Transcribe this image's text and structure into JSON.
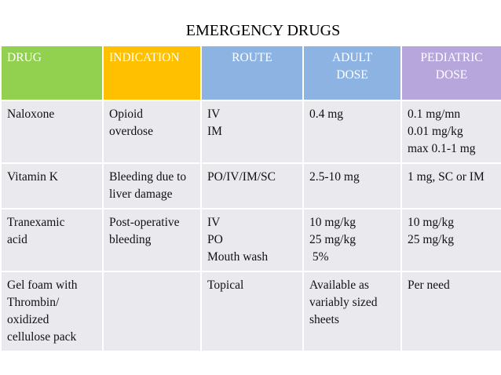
{
  "title": "EMERGENCY DRUGS",
  "table": {
    "header": [
      [
        "DRUG"
      ],
      [
        "INDICATION"
      ],
      [
        "ROUTE"
      ],
      [
        "ADULT",
        "DOSE"
      ],
      [
        "PEDIATRIC",
        "DOSE"
      ]
    ],
    "rows": [
      [
        [
          "Naloxone"
        ],
        [
          "Opioid",
          "overdose"
        ],
        [
          "IV",
          "IM"
        ],
        [
          "0.4 mg"
        ],
        [
          "0.1 mg/mn",
          "0.01 mg/kg",
          "max 0.1-1 mg"
        ]
      ],
      [
        [
          "Vitamin K"
        ],
        [
          "Bleeding due to",
          "liver damage"
        ],
        [
          "PO/IV/IM/SC"
        ],
        [
          "2.5-10 mg"
        ],
        [
          "1 mg, SC or IM"
        ]
      ],
      [
        [
          "Tranexamic",
          "acid"
        ],
        [
          "Post-operative",
          "bleeding"
        ],
        [
          "IV",
          "PO",
          "Mouth wash"
        ],
        [
          "10 mg/kg",
          "25 mg/kg",
          " 5%"
        ],
        [
          "10 mg/kg",
          "25 mg/kg"
        ]
      ],
      [
        [
          "Gel foam with",
          "Thrombin/",
          "oxidized",
          "cellulose pack"
        ],
        [],
        [
          "Topical"
        ],
        [
          "Available as",
          "variably sized",
          "sheets"
        ],
        [
          "Per need"
        ]
      ]
    ]
  }
}
